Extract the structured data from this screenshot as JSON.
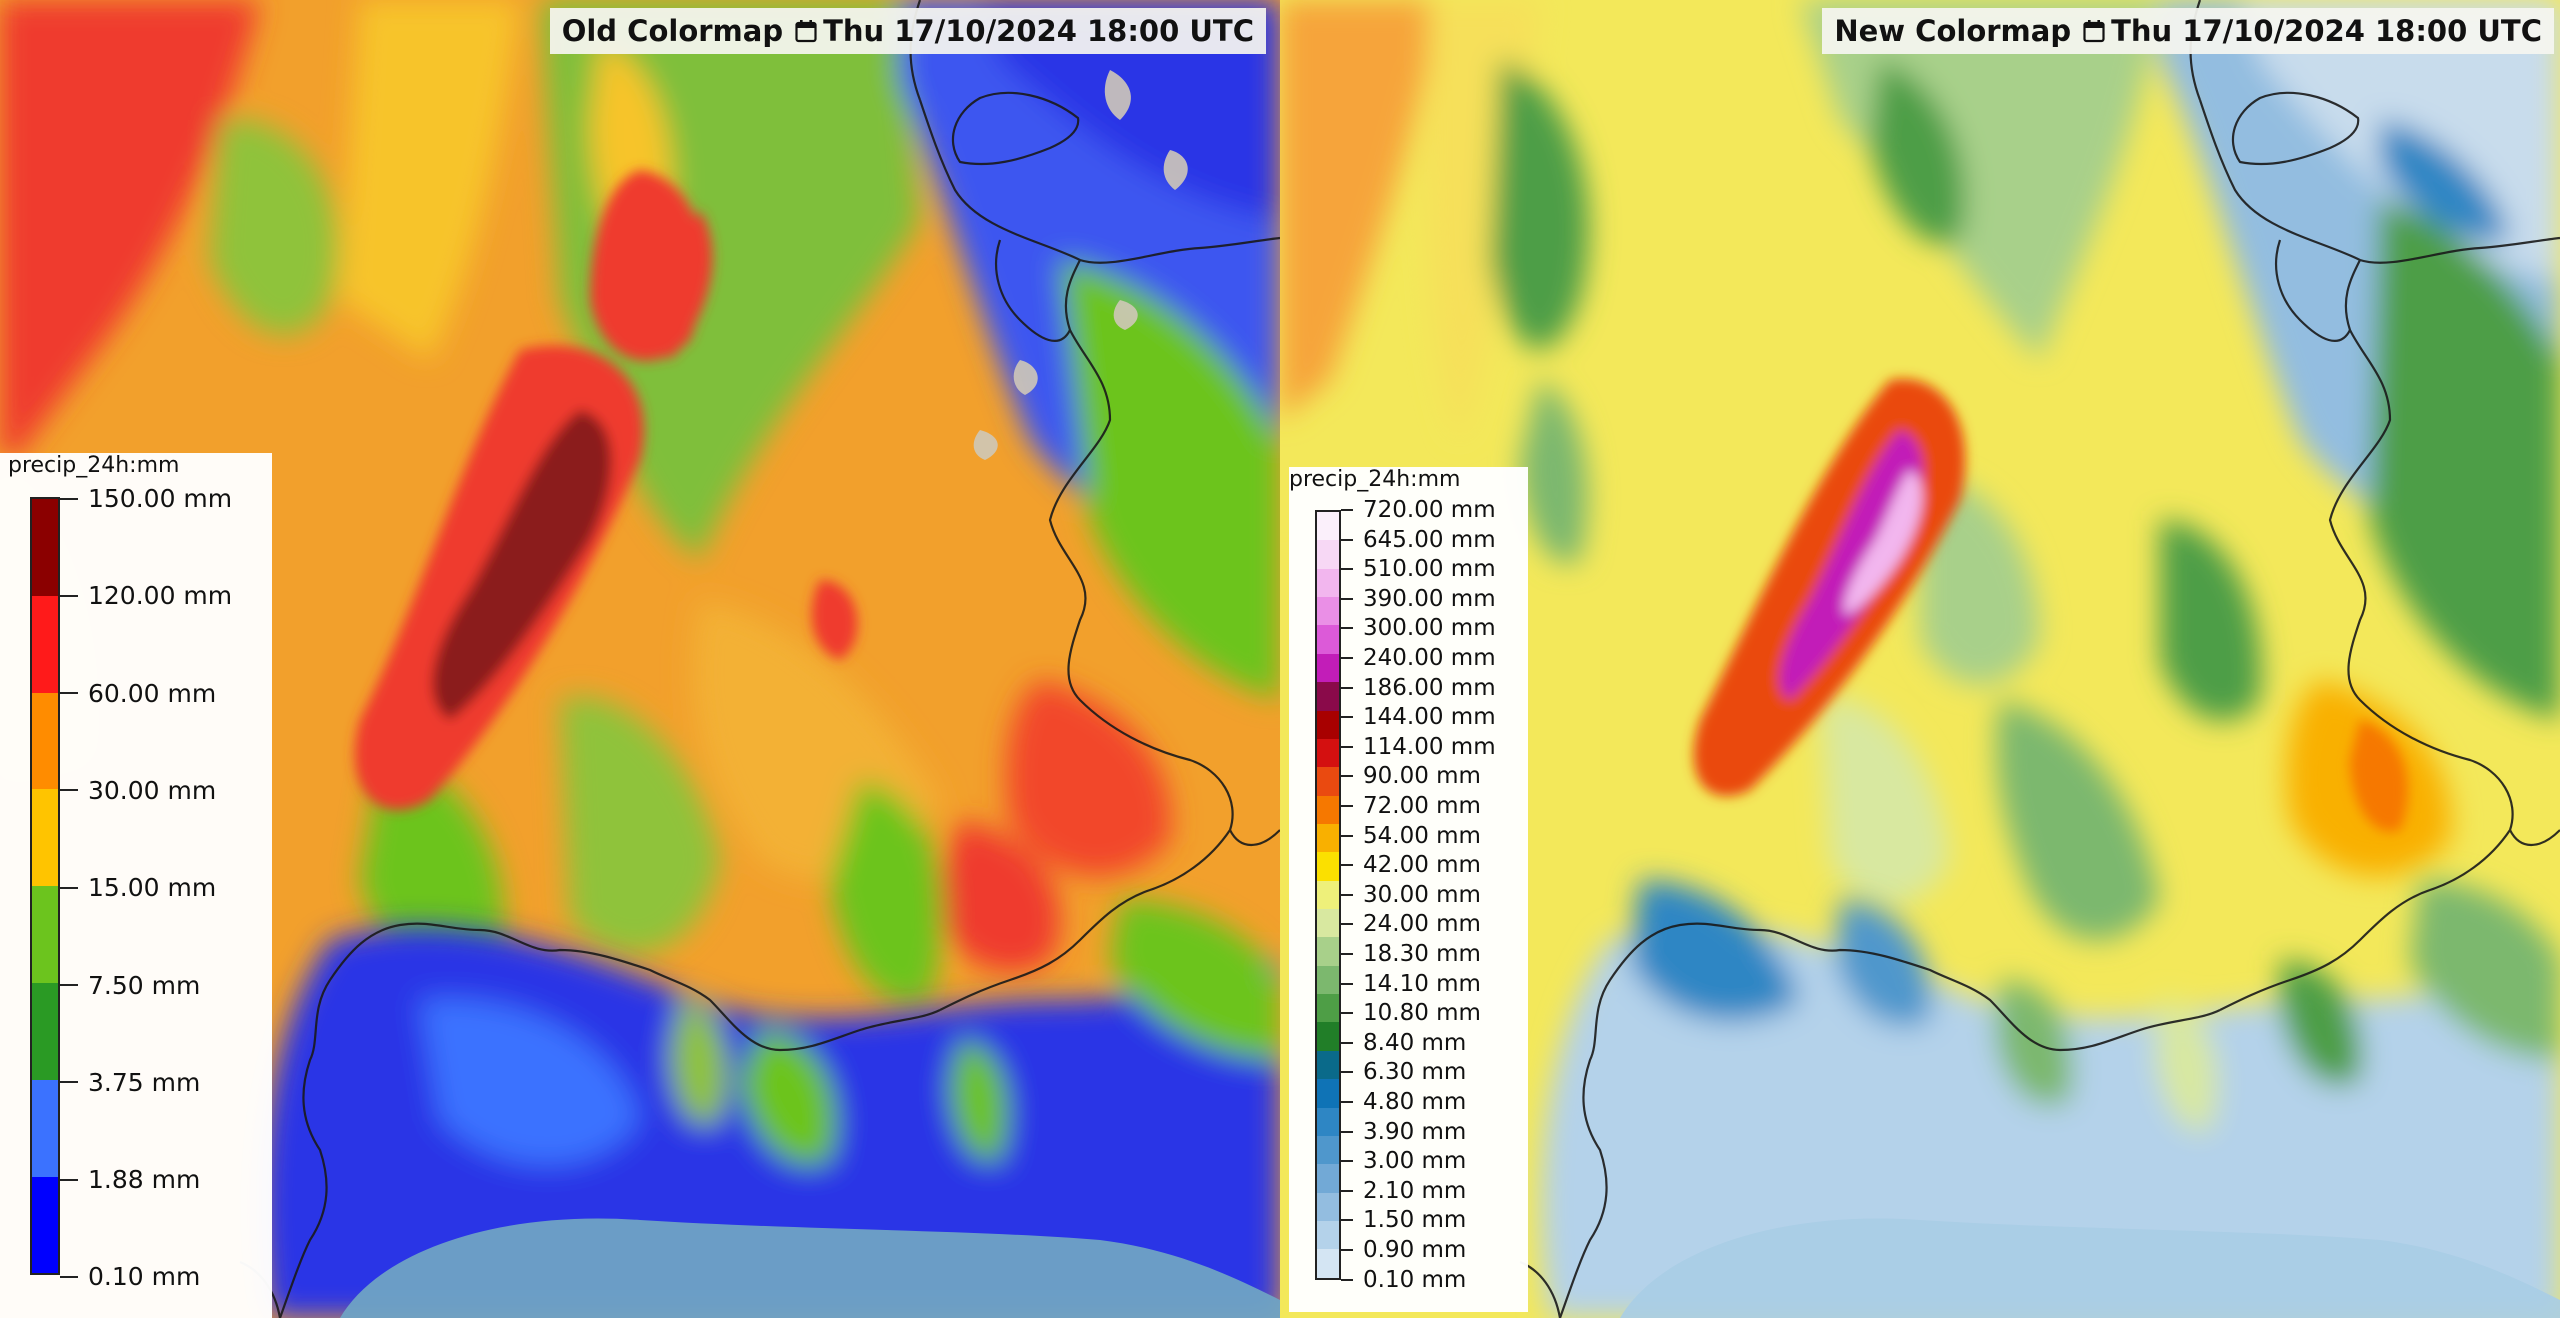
{
  "panels": [
    {
      "title": "Old Colormap",
      "datetime": "Thu 17/10/2024 18:00 UTC",
      "legend": {
        "title": "precip_24h:mm",
        "labels": [
          "150.00 mm",
          "120.00 mm",
          "60.00 mm",
          "30.00 mm",
          "15.00 mm",
          "7.50 mm",
          "3.75 mm",
          "1.88 mm",
          "0.10 mm"
        ],
        "colors": [
          "#8b0000",
          "#ff1a1a",
          "#ff8c00",
          "#ffc400",
          "#6cc41e",
          "#2a9a24",
          "#3b72ff",
          "#0000ff"
        ]
      }
    },
    {
      "title": "New Colormap",
      "datetime": "Thu 17/10/2024 18:00 UTC",
      "legend": {
        "title": "precip_24h:mm",
        "labels": [
          "720.00 mm",
          "645.00 mm",
          "510.00 mm",
          "390.00 mm",
          "300.00 mm",
          "240.00 mm",
          "186.00 mm",
          "144.00 mm",
          "114.00 mm",
          "90.00 mm",
          "72.00 mm",
          "54.00 mm",
          "42.00 mm",
          "30.00 mm",
          "24.00 mm",
          "18.30 mm",
          "14.10 mm",
          "10.80 mm",
          "8.40 mm",
          "6.30 mm",
          "4.80 mm",
          "3.90 mm",
          "3.00 mm",
          "2.10 mm",
          "1.50 mm",
          "0.90 mm",
          "0.10 mm"
        ],
        "colors": [
          "#fbf0fb",
          "#f7d8f5",
          "#f2b6ee",
          "#ea8fe6",
          "#dc5ad8",
          "#c21db8",
          "#8a0a4a",
          "#a80000",
          "#d41010",
          "#ea4a10",
          "#f67800",
          "#f9b000",
          "#fbe000",
          "#eef07a",
          "#d8e8a0",
          "#a8d08a",
          "#7cb86e",
          "#4e9e46",
          "#217e28",
          "#0a6a8a",
          "#0f73b6",
          "#2e86c4",
          "#4f97cc",
          "#72a9d6",
          "#93bde0",
          "#b4d2ea",
          "#d4e5f3"
        ]
      }
    }
  ]
}
